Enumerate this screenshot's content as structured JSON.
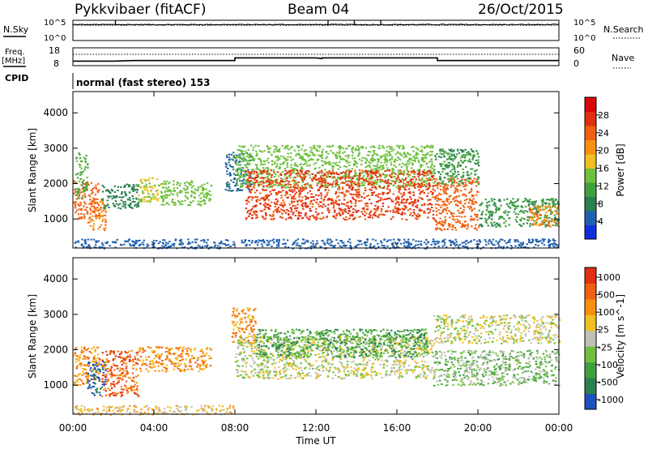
{
  "header": {
    "title": "Pykkvibaer (fitACF)",
    "beam": "Beam 04",
    "date": "26/Oct/2015"
  },
  "panels": {
    "nsky_label": "N.Sky",
    "nsky_ticks": [
      "10^5",
      "10^0"
    ],
    "nsearch_label": "N.Search",
    "nsearch_ticks": [
      "10^5",
      "10^0"
    ],
    "freq_label": "Freq.",
    "freq_unit": "[MHz]",
    "freq_ticks": [
      "18",
      "8"
    ],
    "nave_label": "Nave",
    "nave_ticks": [
      "60",
      "0"
    ],
    "cpid_label": "CPID",
    "cpid_text": "normal (fast stereo) 153"
  },
  "chart_data": [
    {
      "type": "line",
      "name": "nsky-nsearch",
      "xlim": [
        0,
        24
      ],
      "ylim_log10": [
        0,
        5
      ],
      "nsky_level_log10": 4.2,
      "nsearch_level_log10": 4.0
    },
    {
      "type": "line",
      "name": "freq-nave",
      "xlim": [
        0,
        24
      ],
      "freq_ylim": [
        8,
        18
      ],
      "nave_ylim": [
        0,
        60
      ],
      "freq_x": [
        0,
        2,
        3,
        8,
        8,
        12,
        12.3,
        12.3,
        18,
        18,
        24
      ],
      "freq_y": [
        10,
        10,
        10.4,
        10.4,
        12.2,
        12.2,
        11.8,
        12.2,
        12.2,
        10.4,
        10.4
      ],
      "nave_level": 40
    },
    {
      "type": "heatmap",
      "title": "Power",
      "xlabel": "",
      "ylabel": "Slant Range [km]",
      "xlim": [
        0,
        24
      ],
      "ylim": [
        180,
        4600
      ],
      "yticks": [
        1000,
        2000,
        3000,
        4000
      ],
      "colorbar": {
        "label": "Power [dB]",
        "ticks": [
          28,
          24,
          20,
          16,
          12,
          8,
          4
        ],
        "range": [
          0,
          32
        ],
        "colors": [
          "#1030e0",
          "#2060b0",
          "#2a8050",
          "#40a040",
          "#70c040",
          "#f0c020",
          "#f89010",
          "#f06010",
          "#e03010",
          "#d80808"
        ]
      },
      "regions": [
        {
          "t0": 0,
          "t1": 1.3,
          "r0": 1000,
          "r1": 2100,
          "v": 24
        },
        {
          "t0": 0.1,
          "t1": 0.7,
          "r0": 1600,
          "r1": 2900,
          "v": 12
        },
        {
          "t0": 0.7,
          "t1": 1.6,
          "r0": 700,
          "r1": 1600,
          "v": 22
        },
        {
          "t0": 1.4,
          "t1": 3.2,
          "r0": 1300,
          "r1": 2000,
          "v": 8
        },
        {
          "t0": 3.2,
          "t1": 4.3,
          "r0": 1500,
          "r1": 2200,
          "v": 16
        },
        {
          "t0": 4.3,
          "t1": 6.8,
          "r0": 1400,
          "r1": 2100,
          "v": 14
        },
        {
          "t0": 7.5,
          "t1": 8.8,
          "r0": 1800,
          "r1": 2900,
          "v": 6
        },
        {
          "t0": 8.0,
          "t1": 17.8,
          "r0": 1900,
          "r1": 3100,
          "v": 14
        },
        {
          "t0": 8.5,
          "t1": 17.8,
          "r0": 1000,
          "r1": 2400,
          "v": 26
        },
        {
          "t0": 17.8,
          "t1": 20.0,
          "r0": 700,
          "r1": 2200,
          "v": 24
        },
        {
          "t0": 17.8,
          "t1": 20.0,
          "r0": 2000,
          "r1": 3000,
          "v": 10
        },
        {
          "t0": 20.0,
          "t1": 24.0,
          "r0": 800,
          "r1": 1600,
          "v": 10
        },
        {
          "t0": 22.5,
          "t1": 24.0,
          "r0": 800,
          "r1": 1400,
          "v": 22
        },
        {
          "t0": 0,
          "t1": 24,
          "r0": 180,
          "r1": 450,
          "v": 5
        }
      ]
    },
    {
      "type": "heatmap",
      "title": "Velocity",
      "xlabel": "Time UT",
      "ylabel": "Slant Range [km]",
      "xlim": [
        0,
        24
      ],
      "ylim": [
        180,
        4600
      ],
      "xticks": [
        "00:00",
        "04:00",
        "08:00",
        "12:00",
        "16:00",
        "20:00",
        "00:00"
      ],
      "yticks": [
        1000,
        2000,
        3000,
        4000
      ],
      "colorbar": {
        "label": "Velocity [m s^-1]",
        "ticks": [
          "1000",
          "500",
          "100",
          "25",
          "-25",
          "-100",
          "-500",
          "-1000"
        ],
        "colors": [
          "#2050c0",
          "#2a8050",
          "#40a040",
          "#70c040",
          "#c0c0b8",
          "#f0c020",
          "#f89010",
          "#f06010",
          "#e03010"
        ]
      },
      "regions": [
        {
          "t0": 0,
          "t1": 1.3,
          "r0": 1000,
          "r1": 2100,
          "v": 6
        },
        {
          "t0": 0.7,
          "t1": 1.6,
          "r0": 700,
          "r1": 1700,
          "v": 0
        },
        {
          "t0": 1.4,
          "t1": 3.2,
          "r0": 700,
          "r1": 2000,
          "v": 7
        },
        {
          "t0": 3.2,
          "t1": 6.8,
          "r0": 1400,
          "r1": 2100,
          "v": 6
        },
        {
          "t0": 7.8,
          "t1": 9.0,
          "r0": 2200,
          "r1": 3200,
          "v": 6
        },
        {
          "t0": 8.0,
          "t1": 17.8,
          "r0": 1200,
          "r1": 2400,
          "v": 4
        },
        {
          "t0": 9.0,
          "t1": 17.5,
          "r0": 1800,
          "r1": 2600,
          "v": 2
        },
        {
          "t0": 17.8,
          "t1": 24.0,
          "r0": 1000,
          "r1": 2000,
          "v": 3
        },
        {
          "t0": 17.8,
          "t1": 24.0,
          "r0": 2200,
          "r1": 3000,
          "v": 4
        },
        {
          "t0": 0,
          "t1": 8,
          "r0": 180,
          "r1": 450,
          "v": 5
        }
      ]
    }
  ]
}
